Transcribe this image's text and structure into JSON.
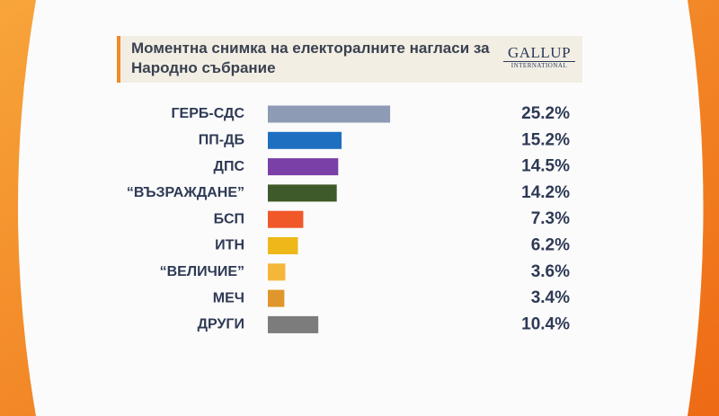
{
  "chart_data": {
    "type": "bar",
    "orientation": "horizontal",
    "title": "Моментна снимка на електоралните нагласи за Народно събрание",
    "logo": {
      "name": "GALLUP",
      "subtitle": "INTERNATIONAL"
    },
    "categories": [
      "ГЕРБ-СДС",
      "ПП-ДБ",
      "ДПС",
      "“ВЪЗРАЖДАНЕ”",
      "БСП",
      "ИТН",
      "“ВЕЛИЧИЕ”",
      "МЕЧ",
      "ДРУГИ"
    ],
    "values": [
      25.2,
      15.2,
      14.5,
      14.2,
      7.3,
      6.2,
      3.6,
      3.4,
      10.4
    ],
    "value_labels": [
      "25.2%",
      "15.2%",
      "14.5%",
      "14.2%",
      "7.3%",
      "6.2%",
      "3.6%",
      "3.4%",
      "10.4%"
    ],
    "colors": [
      "#8e9bb5",
      "#1f6fc1",
      "#7b3fa8",
      "#3f5a2a",
      "#f0582a",
      "#efb81a",
      "#f5b73a",
      "#e0962a",
      "#7c7c7c"
    ]
  }
}
